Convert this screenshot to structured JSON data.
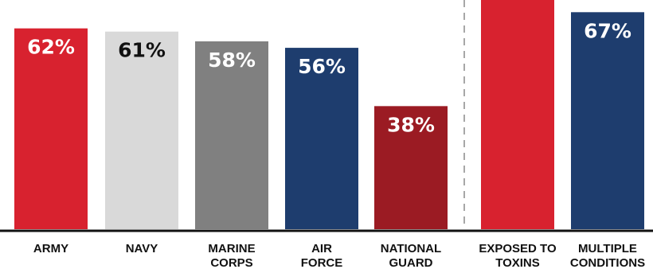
{
  "chart_data": {
    "type": "bar",
    "title": "",
    "xlabel": "",
    "ylabel": "",
    "ylim": [
      0,
      100
    ],
    "grid": false,
    "legend": "none",
    "categories": [
      [
        "ARMY"
      ],
      [
        "NAVY"
      ],
      [
        "MARINE",
        "CORPS"
      ],
      [
        "AIR",
        "FORCE"
      ],
      [
        "NATIONAL",
        "GUARD"
      ],
      [
        "EXPOSED TO",
        "TOXINS"
      ],
      [
        "MULTIPLE",
        "CONDITIONS"
      ]
    ],
    "values": [
      62,
      61,
      58,
      56,
      38,
      85,
      67
    ],
    "data_labels": [
      "62%",
      "61%",
      "58%",
      "56%",
      "38%",
      "",
      "67%"
    ],
    "bar_colors": [
      "#d8222f",
      "#d9d9d9",
      "#808080",
      "#1e3d6e",
      "#9b1b23",
      "#d8222f",
      "#1e3d6e"
    ],
    "label_colors": [
      "#ffffff",
      "#111111",
      "#ffffff",
      "#ffffff",
      "#ffffff",
      "#ffffff",
      "#ffffff"
    ],
    "axis_color": "#111111",
    "divider_color": "#8a8a8a"
  }
}
